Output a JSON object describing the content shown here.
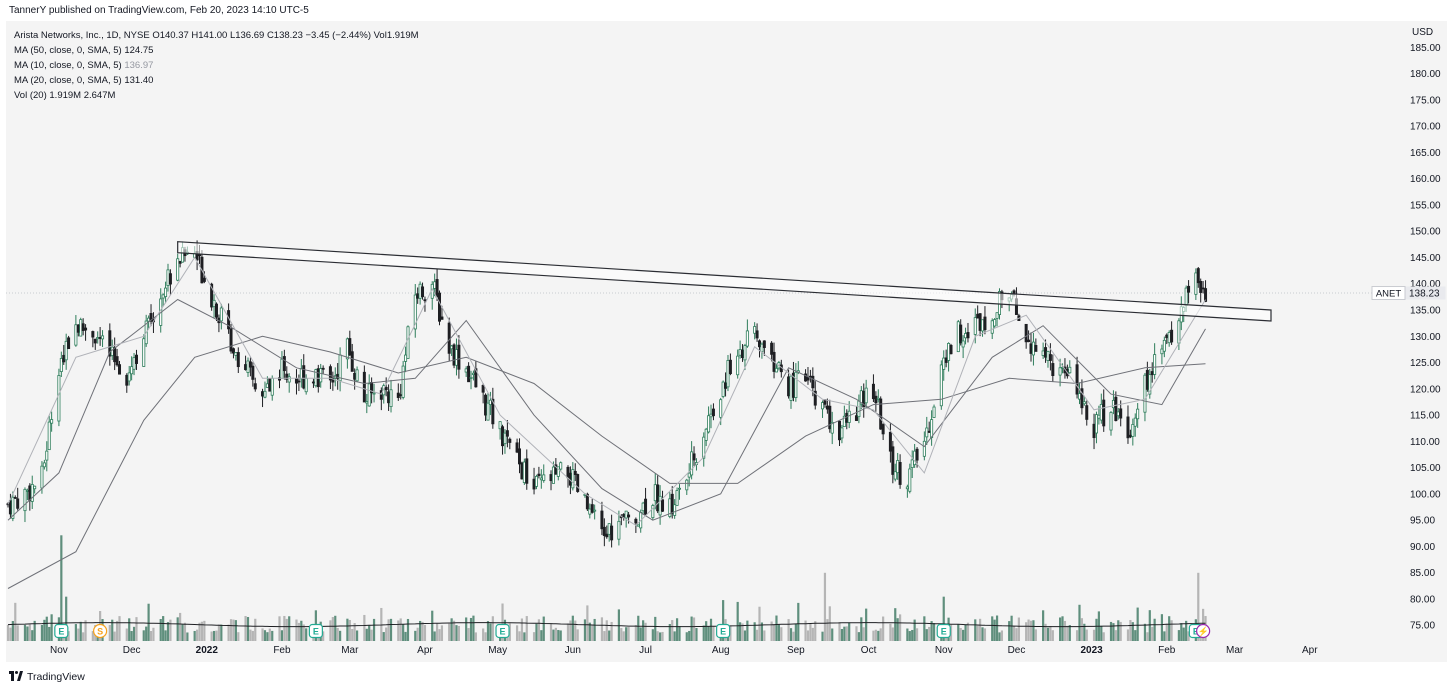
{
  "header": {
    "published": "TannerY published on TradingView.com, Feb 20, 2023 14:10 UTC-5"
  },
  "legend": {
    "symbol_line": "Arista Networks, Inc., 1D, NYSE  O140.37  H141.00  L136.69  C138.23  −3.45 (−2.44%)  Vol1.919M",
    "ma50_label": "MA (50, close, 0, SMA, 5)",
    "ma50_value": "124.75",
    "ma10_label": "MA (10, close, 0, SMA, 5)",
    "ma10_value": "136.97",
    "ma20_label": "MA (20, close, 0, SMA, 5)",
    "ma20_value": "131.40",
    "vol_label": "Vol (20)",
    "vol_values": "1.919M  2.647M"
  },
  "footer": {
    "brand": "TradingView"
  },
  "colors": {
    "up": "#2e7d5b",
    "down": "#1e1f23",
    "volume_up": "#5f8f7d",
    "volume_down": "#b5b5b5",
    "background": "#f4f4f4",
    "earnings_badge": "#22ab94",
    "dividend_badge": "#f7a21b",
    "split_badge": "#9c27b0"
  },
  "chart_data": {
    "type": "candlestick",
    "symbol": "ANET",
    "currency": "USD",
    "last_price": "138.23",
    "ylim": [
      72,
      190
    ],
    "y_ticks": [
      "185.00",
      "180.00",
      "175.00",
      "170.00",
      "165.00",
      "160.00",
      "155.00",
      "150.00",
      "145.00",
      "140.00",
      "135.00",
      "130.00",
      "125.00",
      "120.00",
      "115.00",
      "110.00",
      "105.00",
      "100.00",
      "95.00",
      "90.00",
      "85.00",
      "80.00",
      "75.00"
    ],
    "x_labels": [
      {
        "label": "Nov",
        "date": "2021-11-01"
      },
      {
        "label": "Dec",
        "date": "2021-12-01"
      },
      {
        "label": "2022",
        "date": "2022-01-01",
        "bold": true
      },
      {
        "label": "Feb",
        "date": "2022-02-01"
      },
      {
        "label": "Mar",
        "date": "2022-03-01"
      },
      {
        "label": "Apr",
        "date": "2022-04-01"
      },
      {
        "label": "May",
        "date": "2022-05-01"
      },
      {
        "label": "Jun",
        "date": "2022-06-01"
      },
      {
        "label": "Jul",
        "date": "2022-07-01"
      },
      {
        "label": "Aug",
        "date": "2022-08-01"
      },
      {
        "label": "Sep",
        "date": "2022-09-01"
      },
      {
        "label": "Oct",
        "date": "2022-10-01"
      },
      {
        "label": "Nov",
        "date": "2022-11-01"
      },
      {
        "label": "Dec",
        "date": "2022-12-01"
      },
      {
        "label": "2023",
        "date": "2023-01-01",
        "bold": true
      },
      {
        "label": "Feb",
        "date": "2023-02-01"
      },
      {
        "label": "Mar",
        "date": "2023-03-01"
      },
      {
        "label": "Apr",
        "date": "2023-04-01"
      }
    ],
    "x_range": [
      "2021-10-11",
      "2023-04-18"
    ],
    "close_path": [
      [
        "2021-10-11",
        98
      ],
      [
        "2021-10-18",
        100
      ],
      [
        "2021-10-25",
        103
      ],
      [
        "2021-11-01",
        125
      ],
      [
        "2021-11-08",
        132
      ],
      [
        "2021-11-15",
        131
      ],
      [
        "2021-11-22",
        126
      ],
      [
        "2021-11-29",
        123
      ],
      [
        "2021-12-06",
        130
      ],
      [
        "2021-12-13",
        138
      ],
      [
        "2021-12-20",
        145
      ],
      [
        "2021-12-27",
        146
      ],
      [
        "2022-01-03",
        138
      ],
      [
        "2022-01-10",
        130
      ],
      [
        "2022-01-17",
        124
      ],
      [
        "2022-01-24",
        118
      ],
      [
        "2022-01-31",
        124
      ],
      [
        "2022-02-07",
        122
      ],
      [
        "2022-02-14",
        123
      ],
      [
        "2022-02-21",
        121
      ],
      [
        "2022-02-28",
        128
      ],
      [
        "2022-03-07",
        118
      ],
      [
        "2022-03-14",
        120
      ],
      [
        "2022-03-21",
        118
      ],
      [
        "2022-03-28",
        138
      ],
      [
        "2022-04-04",
        140
      ],
      [
        "2022-04-11",
        128
      ],
      [
        "2022-04-18",
        124
      ],
      [
        "2022-04-25",
        118
      ],
      [
        "2022-05-02",
        112
      ],
      [
        "2022-05-09",
        106
      ],
      [
        "2022-05-16",
        101
      ],
      [
        "2022-05-23",
        103
      ],
      [
        "2022-05-30",
        104
      ],
      [
        "2022-06-06",
        98
      ],
      [
        "2022-06-13",
        92
      ],
      [
        "2022-06-20",
        94
      ],
      [
        "2022-06-27",
        96
      ],
      [
        "2022-07-04",
        100
      ],
      [
        "2022-07-11",
        97
      ],
      [
        "2022-07-18",
        103
      ],
      [
        "2022-07-25",
        112
      ],
      [
        "2022-08-01",
        120
      ],
      [
        "2022-08-08",
        127
      ],
      [
        "2022-08-15",
        130
      ],
      [
        "2022-08-22",
        126
      ],
      [
        "2022-08-29",
        120
      ],
      [
        "2022-09-05",
        122
      ],
      [
        "2022-09-12",
        116
      ],
      [
        "2022-09-19",
        112
      ],
      [
        "2022-09-26",
        116
      ],
      [
        "2022-10-03",
        120
      ],
      [
        "2022-10-10",
        106
      ],
      [
        "2022-10-17",
        103
      ],
      [
        "2022-10-24",
        110
      ],
      [
        "2022-10-31",
        124
      ],
      [
        "2022-11-07",
        131
      ],
      [
        "2022-11-14",
        132
      ],
      [
        "2022-11-21",
        135
      ],
      [
        "2022-11-28",
        138
      ],
      [
        "2022-12-05",
        130
      ],
      [
        "2022-12-12",
        127
      ],
      [
        "2022-12-19",
        123
      ],
      [
        "2022-12-26",
        121
      ],
      [
        "2023-01-02",
        113
      ],
      [
        "2023-01-09",
        117
      ],
      [
        "2023-01-16",
        112
      ],
      [
        "2023-01-23",
        121
      ],
      [
        "2023-01-30",
        127
      ],
      [
        "2023-02-06",
        134
      ],
      [
        "2023-02-13",
        142
      ],
      [
        "2023-02-17",
        138.23
      ]
    ],
    "ma50_path": [
      [
        "2021-10-11",
        82
      ],
      [
        "2021-11-08",
        89
      ],
      [
        "2021-12-06",
        114
      ],
      [
        "2021-12-27",
        126
      ],
      [
        "2022-01-24",
        130
      ],
      [
        "2022-02-21",
        127
      ],
      [
        "2022-03-21",
        123
      ],
      [
        "2022-04-18",
        126
      ],
      [
        "2022-05-16",
        121
      ],
      [
        "2022-06-13",
        111
      ],
      [
        "2022-07-11",
        102
      ],
      [
        "2022-08-08",
        102
      ],
      [
        "2022-09-05",
        111
      ],
      [
        "2022-10-03",
        117
      ],
      [
        "2022-10-31",
        118
      ],
      [
        "2022-11-28",
        122
      ],
      [
        "2022-12-26",
        121
      ],
      [
        "2023-01-23",
        124
      ],
      [
        "2023-02-17",
        124.75
      ]
    ],
    "ma20_path": [
      [
        "2021-10-11",
        95
      ],
      [
        "2021-11-01",
        104
      ],
      [
        "2021-11-22",
        127
      ],
      [
        "2021-12-20",
        137
      ],
      [
        "2022-01-10",
        132
      ],
      [
        "2022-02-07",
        124
      ],
      [
        "2022-03-07",
        121
      ],
      [
        "2022-03-28",
        122
      ],
      [
        "2022-04-18",
        133
      ],
      [
        "2022-05-16",
        115
      ],
      [
        "2022-06-13",
        101
      ],
      [
        "2022-07-04",
        95
      ],
      [
        "2022-08-01",
        100
      ],
      [
        "2022-08-29",
        124
      ],
      [
        "2022-09-26",
        118
      ],
      [
        "2022-10-24",
        109
      ],
      [
        "2022-11-21",
        126
      ],
      [
        "2022-12-12",
        132
      ],
      [
        "2023-01-09",
        119
      ],
      [
        "2023-01-30",
        117
      ],
      [
        "2023-02-17",
        131.4
      ]
    ],
    "ma10_path": [
      [
        "2021-10-11",
        98
      ],
      [
        "2021-11-08",
        126
      ],
      [
        "2021-12-06",
        130
      ],
      [
        "2021-12-27",
        145
      ],
      [
        "2022-01-24",
        122
      ],
      [
        "2022-02-21",
        122
      ],
      [
        "2022-03-14",
        119
      ],
      [
        "2022-04-04",
        139
      ],
      [
        "2022-05-02",
        115
      ],
      [
        "2022-06-06",
        100
      ],
      [
        "2022-06-27",
        94
      ],
      [
        "2022-07-25",
        107
      ],
      [
        "2022-08-15",
        128
      ],
      [
        "2022-09-12",
        118
      ],
      [
        "2022-10-03",
        116
      ],
      [
        "2022-10-24",
        104
      ],
      [
        "2022-11-14",
        130
      ],
      [
        "2022-12-05",
        134
      ],
      [
        "2023-01-02",
        116
      ],
      [
        "2023-01-23",
        118
      ],
      [
        "2023-02-17",
        136.97
      ]
    ],
    "trendline": {
      "start": [
        "2021-12-20",
        148
      ],
      "end": [
        "2023-03-16",
        135
      ]
    },
    "volume_spikes": [
      [
        "2021-11-02",
        31
      ],
      [
        "2021-11-04",
        13
      ],
      [
        "2022-02-15",
        9
      ],
      [
        "2022-05-03",
        11
      ],
      [
        "2022-08-02",
        12
      ],
      [
        "2022-09-13",
        20
      ],
      [
        "2022-11-01",
        13
      ],
      [
        "2022-12-12",
        9
      ],
      [
        "2023-02-14",
        20
      ]
    ],
    "events": [
      {
        "type": "earnings",
        "label": "E",
        "date": "2021-11-02"
      },
      {
        "type": "dividend",
        "label": "S",
        "date": "2021-11-18"
      },
      {
        "type": "earnings",
        "label": "E",
        "date": "2022-02-15"
      },
      {
        "type": "earnings",
        "label": "E",
        "date": "2022-05-03"
      },
      {
        "type": "earnings",
        "label": "E",
        "date": "2022-08-02"
      },
      {
        "type": "earnings",
        "label": "E",
        "date": "2022-11-01"
      },
      {
        "type": "earnings",
        "label": "E",
        "date": "2023-02-13"
      },
      {
        "type": "split",
        "label": "⚡",
        "date": "2023-02-16"
      }
    ]
  }
}
